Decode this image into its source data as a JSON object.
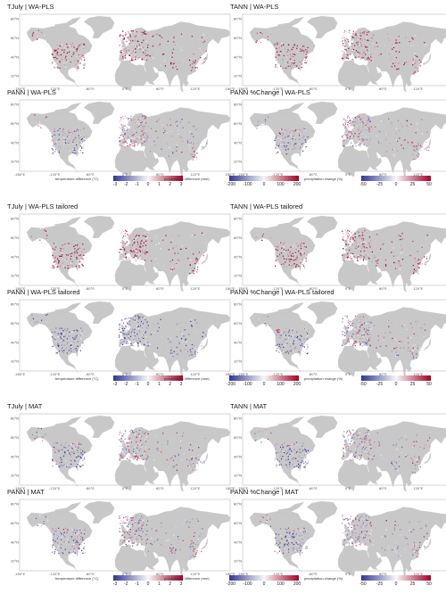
{
  "chart_data": {
    "type": "map",
    "description_units": {
      "temperature": "°C",
      "precipitation": "mm",
      "precipitation_change": "%"
    },
    "latitude_ticks": [
      "80°N",
      "60°N",
      "40°N",
      "20°N"
    ],
    "longitude_ticks": [
      "-180°E",
      "-120°E",
      "-60°E",
      "0°E",
      "60°E",
      "120°E",
      "180°E"
    ],
    "panels": [
      {
        "title": "TJuly | WA-PLS",
        "variable": "temperature",
        "dominant": "warm"
      },
      {
        "title": "TANN | WA-PLS",
        "variable": "temperature",
        "dominant": "warm"
      },
      {
        "title": "PANN | WA-PLS",
        "variable": "precipitation",
        "dominant": "mixed"
      },
      {
        "title": "PANN %Change | WA-PLS",
        "variable": "precipitation_change",
        "dominant": "mixed"
      },
      {
        "title": "TJuly | WA-PLS tailored",
        "variable": "temperature",
        "dominant": "warm"
      },
      {
        "title": "TANN | WA-PLS tailored",
        "variable": "temperature",
        "dominant": "warm"
      },
      {
        "title": "PANN | WA-PLS tailored",
        "variable": "precipitation",
        "dominant": "cool"
      },
      {
        "title": "PANN %Change | WA-PLS tailored",
        "variable": "precipitation_change",
        "dominant": "mixed"
      },
      {
        "title": "TJuly | MAT",
        "variable": "temperature",
        "dominant": "mixed"
      },
      {
        "title": "TANN | MAT",
        "variable": "temperature",
        "dominant": "mixed"
      },
      {
        "title": "PANN | MAT",
        "variable": "precipitation",
        "dominant": "mixed"
      },
      {
        "title": "PANN %Change | MAT",
        "variable": "precipitation_change",
        "dominant": "mixed"
      }
    ],
    "legends": [
      {
        "title": "temperature difference (°C)",
        "ticks": [
          "-3",
          "-2",
          "-1",
          "0",
          "1",
          "2",
          "3"
        ],
        "range": [
          -3,
          3
        ]
      },
      {
        "title": "precipitation difference (mm)",
        "ticks": [
          "-200",
          "-100",
          "0",
          "100",
          "200"
        ],
        "range": [
          -200,
          200
        ]
      },
      {
        "title": "precipitation change (%)",
        "ticks": [
          "-50",
          "-25",
          "0",
          "25",
          "50"
        ],
        "range": [
          -50,
          50
        ]
      }
    ],
    "colors": {
      "low": "#313695",
      "mid": "#f7f7f7",
      "high": "#a50026",
      "land": "#c8c8c8"
    }
  }
}
